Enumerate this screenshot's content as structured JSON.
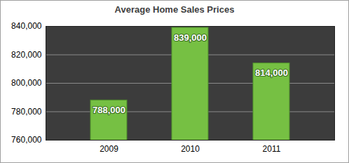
{
  "chart_data": {
    "type": "bar",
    "title": "Average Home Sales Prices",
    "categories": [
      "2009",
      "2010",
      "2011"
    ],
    "values": [
      788000,
      839000,
      814000
    ],
    "value_labels": [
      "788,000",
      "839,000",
      "814,000"
    ],
    "data_labels": true,
    "color": "#76c043",
    "ylim": [
      760000,
      840000
    ],
    "yticks": [
      {
        "value": 760000,
        "label": "760,000"
      },
      {
        "value": 780000,
        "label": "780,000"
      },
      {
        "value": 800000,
        "label": "800,000"
      },
      {
        "value": 820000,
        "label": "820,000"
      },
      {
        "value": 840000,
        "label": "840,000"
      }
    ],
    "grid": true
  }
}
